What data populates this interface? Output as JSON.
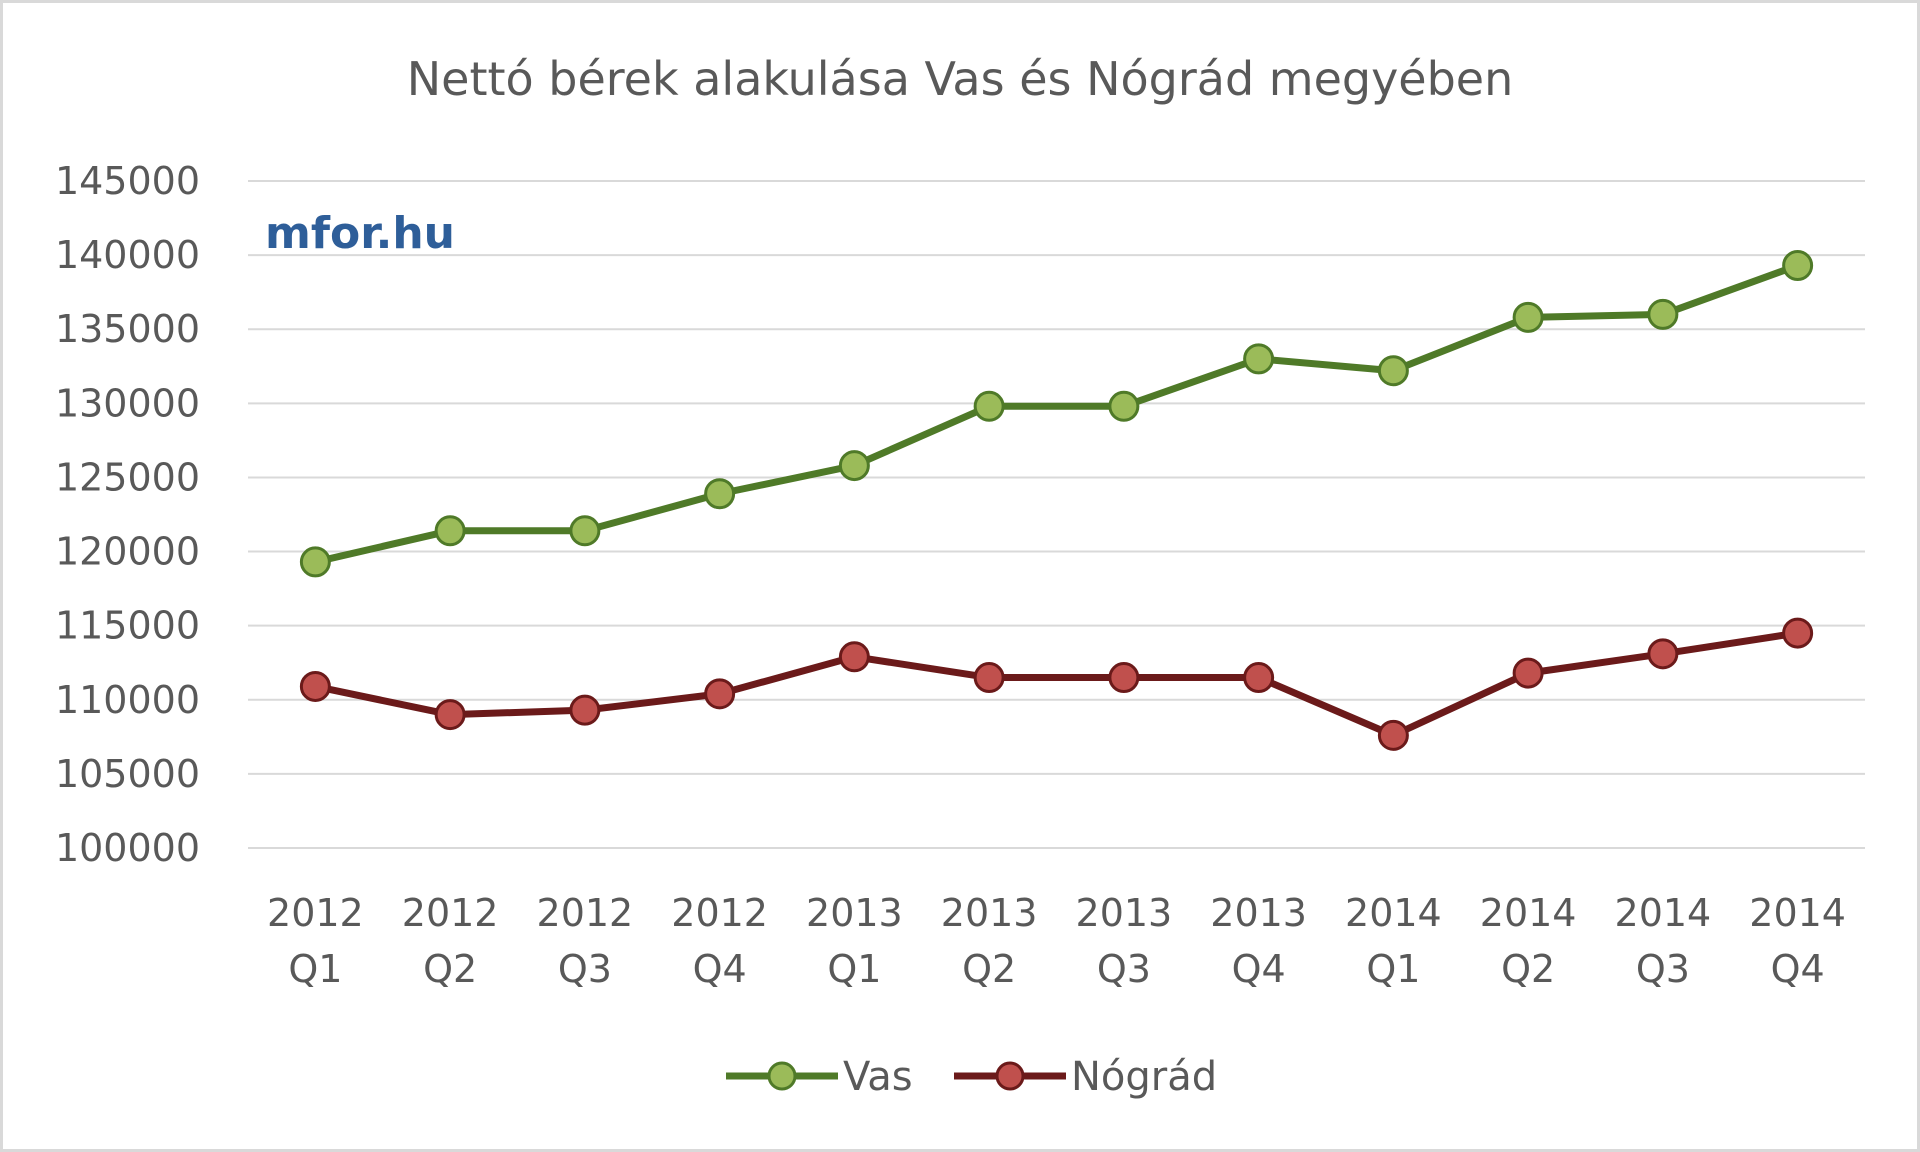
{
  "watermark": "mfor.hu",
  "chart_data": {
    "type": "line",
    "title": "Nettó bérek alakulása Vas és Nógrád megyében",
    "xlabel": "",
    "ylabel": "",
    "categories": [
      [
        "2012",
        "Q1"
      ],
      [
        "2012",
        "Q2"
      ],
      [
        "2012",
        "Q3"
      ],
      [
        "2012",
        "Q4"
      ],
      [
        "2013",
        "Q1"
      ],
      [
        "2013",
        "Q2"
      ],
      [
        "2013",
        "Q3"
      ],
      [
        "2013",
        "Q4"
      ],
      [
        "2014",
        "Q1"
      ],
      [
        "2014",
        "Q2"
      ],
      [
        "2014",
        "Q3"
      ],
      [
        "2014",
        "Q4"
      ]
    ],
    "ylim": [
      100000,
      145000
    ],
    "yticks": [
      100000,
      105000,
      110000,
      115000,
      120000,
      125000,
      130000,
      135000,
      140000,
      145000
    ],
    "grid": true,
    "legend": "bottom",
    "series": [
      {
        "name": "Vas",
        "color": "#4f7a28",
        "marker_color": "#9bbb59",
        "values": [
          119300,
          121400,
          121400,
          123900,
          125800,
          129800,
          129800,
          133000,
          132200,
          135800,
          136000,
          139300
        ]
      },
      {
        "name": "Nógrád",
        "color": "#6b1a1a",
        "marker_color": "#c0504d",
        "values": [
          110900,
          109000,
          109300,
          110400,
          112900,
          111500,
          111500,
          111500,
          107600,
          111800,
          113100,
          114500
        ]
      }
    ]
  }
}
